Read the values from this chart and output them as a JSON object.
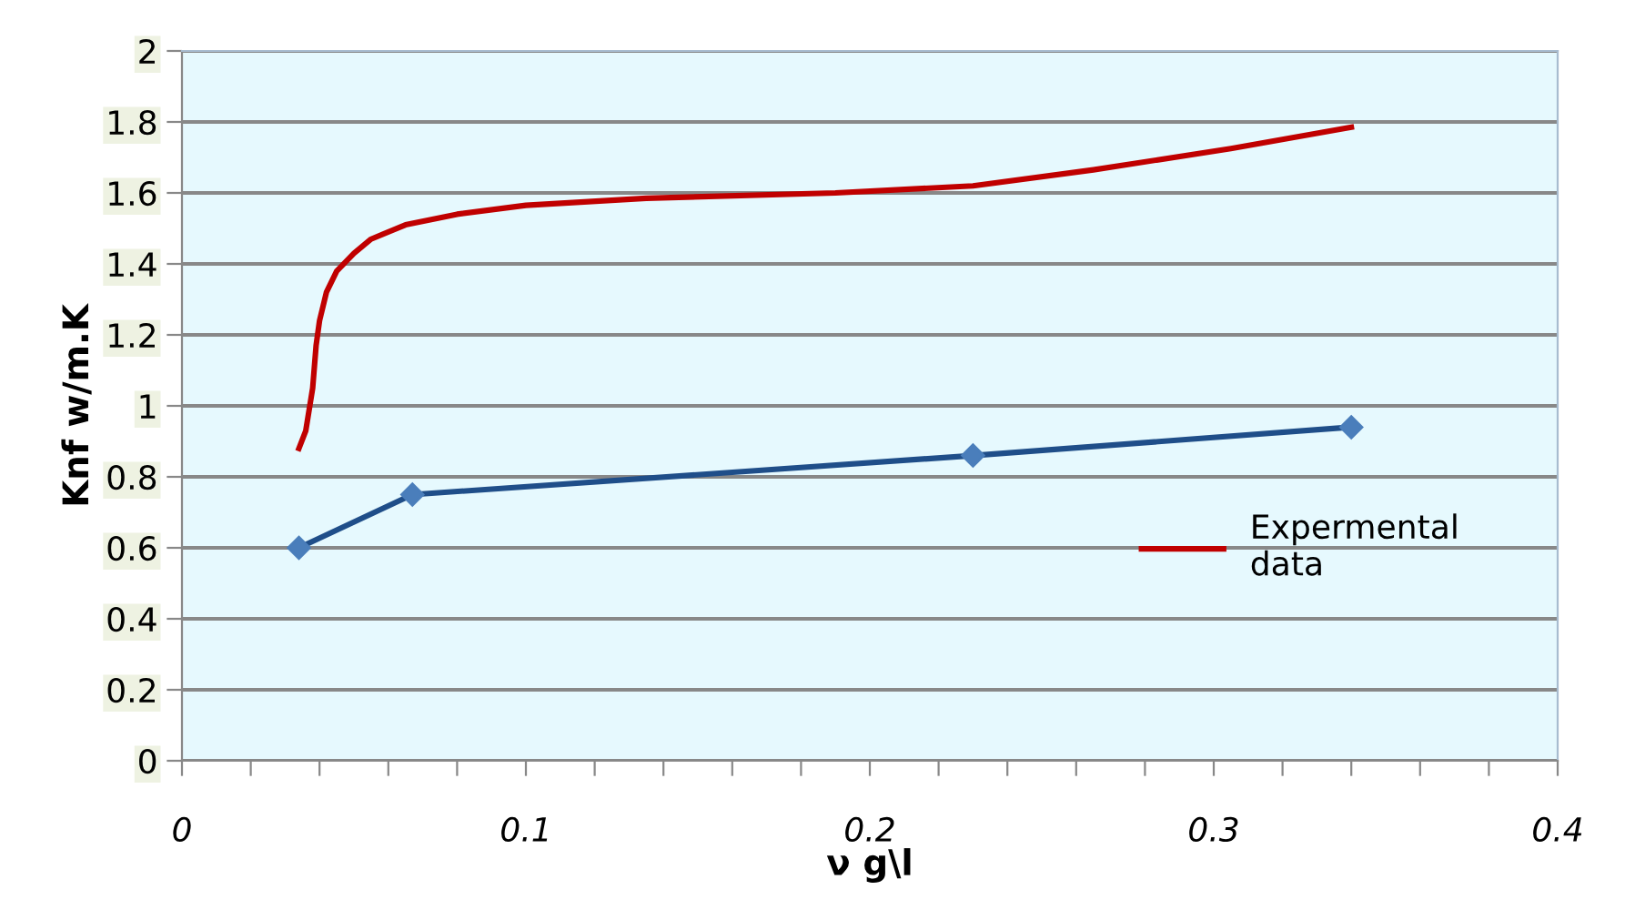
{
  "chart_data": {
    "type": "line",
    "xlabel": "ν g\\l",
    "ylabel": "Knf w/m.K",
    "xlim": [
      0,
      0.4
    ],
    "ylim": [
      0,
      2
    ],
    "xticks": [
      0,
      {
        "value": 0.02,
        "label": null
      },
      {
        "value": 0.04,
        "label": null
      },
      {
        "value": 0.06,
        "label": null
      },
      {
        "value": 0.08,
        "label": null
      },
      0.1,
      {
        "value": 0.12,
        "label": null
      },
      {
        "value": 0.14,
        "label": null
      },
      {
        "value": 0.16,
        "label": null
      },
      {
        "value": 0.18,
        "label": null
      },
      0.2,
      {
        "value": 0.22,
        "label": null
      },
      {
        "value": 0.24,
        "label": null
      },
      {
        "value": 0.26,
        "label": null
      },
      {
        "value": 0.28,
        "label": null
      },
      0.3,
      {
        "value": 0.32,
        "label": null
      },
      {
        "value": 0.34,
        "label": null
      },
      {
        "value": 0.36,
        "label": null
      },
      {
        "value": 0.38,
        "label": null
      },
      0.4
    ],
    "yticks": [
      0,
      0.2,
      0.4,
      0.6,
      0.8,
      1,
      1.2,
      1.4,
      1.6,
      1.8,
      2
    ],
    "grid": "y",
    "legend": "right",
    "series": [
      {
        "color": "#1f4e89",
        "marker": "diamond",
        "x": [
          0.034,
          0.067,
          0.23,
          0.34
        ],
        "values": [
          0.6,
          0.75,
          0.86,
          0.94
        ]
      },
      {
        "name": "Expermental data",
        "color": "#c00000",
        "marker": "none",
        "x": [
          0.034,
          0.036,
          0.038,
          0.039,
          0.04,
          0.042,
          0.045,
          0.05,
          0.055,
          0.065,
          0.08,
          0.1,
          0.135,
          0.19,
          0.23,
          0.265,
          0.305,
          0.34
        ],
        "values": [
          0.88,
          0.93,
          1.05,
          1.17,
          1.24,
          1.32,
          1.38,
          1.43,
          1.47,
          1.51,
          1.54,
          1.565,
          1.585,
          1.6,
          1.62,
          1.665,
          1.725,
          1.785
        ]
      }
    ]
  }
}
